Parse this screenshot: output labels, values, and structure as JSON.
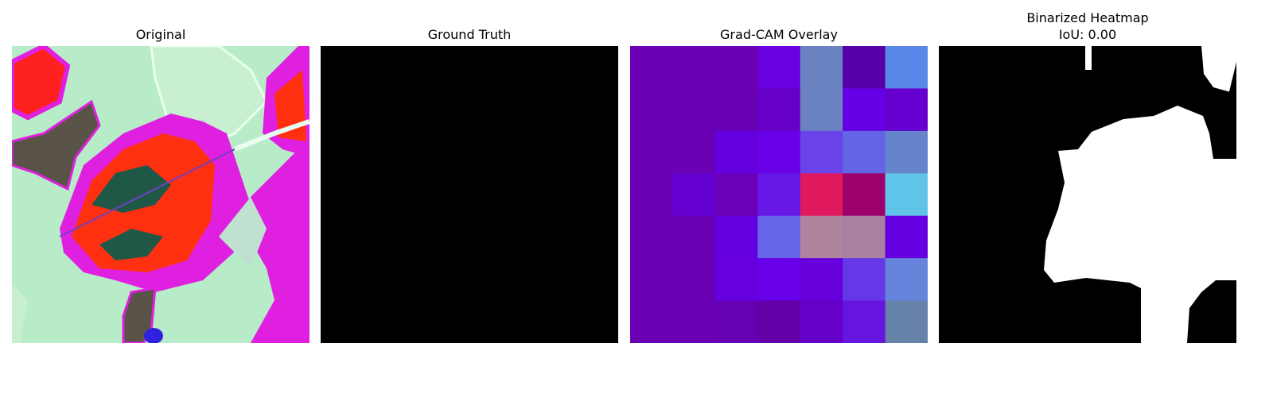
{
  "panels": [
    {
      "title": "Original"
    },
    {
      "title": "Ground Truth"
    },
    {
      "title": "Grad-CAM Overlay"
    },
    {
      "title": "Binarized Heatmap",
      "subtitle": "IoU: 0.00"
    }
  ],
  "gradcam_grid": [
    [
      "#6a00b4",
      "#6a00b4",
      "#6a00b4",
      "#6800e0",
      "#6a82c0",
      "#5800a8",
      "#5a88e8"
    ],
    [
      "#6a00b4",
      "#6a00b4",
      "#6a00b4",
      "#6600c8",
      "#6a82c0",
      "#6400e4",
      "#6600d0"
    ],
    [
      "#6a00b4",
      "#6a00b4",
      "#6400e0",
      "#6800e8",
      "#6a44e8",
      "#6464e6",
      "#6684cc"
    ],
    [
      "#6a00b4",
      "#6400d0",
      "#6a00b8",
      "#6818e6",
      "#e0185e",
      "#9c006c",
      "#60c4e8"
    ],
    [
      "#6a00b4",
      "#6a00b4",
      "#6400e0",
      "#6666e8",
      "#b0849c",
      "#a880a0",
      "#6400e0"
    ],
    [
      "#6a00b4",
      "#6a00b4",
      "#6600e0",
      "#6800e8",
      "#6600dc",
      "#6438e6",
      "#6684dc"
    ],
    [
      "#6a00b4",
      "#6a00b4",
      "#6600b0",
      "#6400a8",
      "#6400c8",
      "#6614e0",
      "#6682a8"
    ]
  ],
  "colors": {
    "leaf_magenta": "#e020e0",
    "leaf_red": "#ff3010",
    "dark_green": "#205848",
    "pale_green": "#b8ecc8",
    "grey_brown": "#5a5448"
  }
}
